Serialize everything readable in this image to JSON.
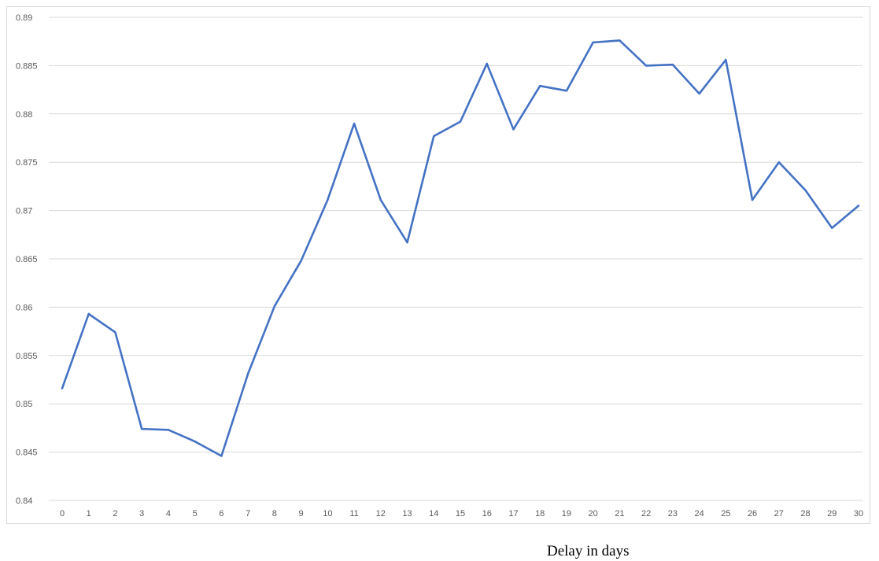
{
  "chart_data": {
    "type": "line",
    "title": "",
    "xlabel": "Delay in days",
    "ylabel": "",
    "x": [
      0,
      1,
      2,
      3,
      4,
      5,
      6,
      7,
      8,
      9,
      10,
      11,
      12,
      13,
      14,
      15,
      16,
      17,
      18,
      19,
      20,
      21,
      22,
      23,
      24,
      25,
      26,
      27,
      28,
      29,
      30
    ],
    "series": [
      {
        "values": [
          0.8516,
          0.8593,
          0.8574,
          0.8474,
          0.8473,
          0.8461,
          0.8446,
          0.8531,
          0.8601,
          0.8648,
          0.8711,
          0.879,
          0.8711,
          0.8667,
          0.8777,
          0.8792,
          0.8852,
          0.8784,
          0.8829,
          0.8824,
          0.8874,
          0.8876,
          0.885,
          0.8851,
          0.8821,
          0.8856,
          0.8711,
          0.875,
          0.8721,
          0.8682,
          0.8705
        ],
        "color": "#4472c4"
      }
    ],
    "y_ticks": [
      "0.84",
      "0.845",
      "0.85",
      "0.855",
      "0.86",
      "0.865",
      "0.87",
      "0.875",
      "0.88",
      "0.885",
      "0.89"
    ],
    "x_ticks": [
      "0",
      "1",
      "2",
      "3",
      "4",
      "5",
      "6",
      "7",
      "8",
      "9",
      "10",
      "11",
      "12",
      "13",
      "14",
      "15",
      "16",
      "17",
      "18",
      "19",
      "20",
      "21",
      "22",
      "23",
      "24",
      "25",
      "26",
      "27",
      "28",
      "29",
      "30"
    ],
    "ylim": [
      0.84,
      0.89
    ],
    "xlim": [
      0,
      30
    ],
    "grid": true,
    "legend": "none",
    "gridline_color": "#d9d9d9",
    "tick_color": "#595959"
  }
}
